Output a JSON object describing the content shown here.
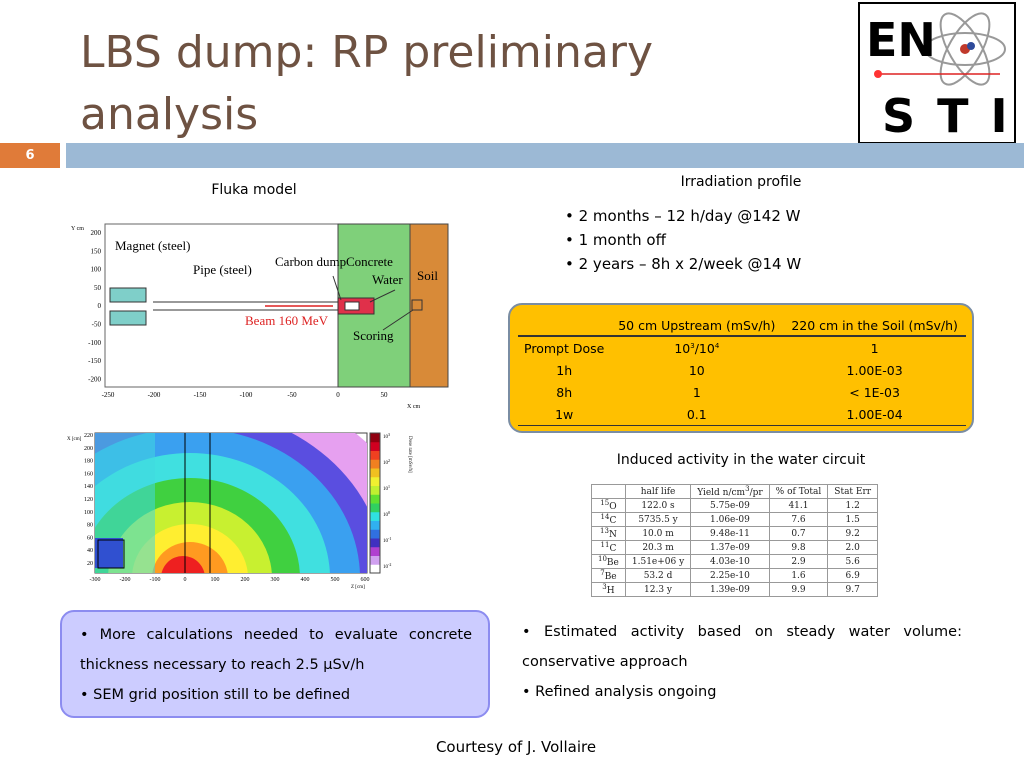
{
  "header": {
    "title": "LBS dump: RP preliminary analysis",
    "slide_number": "6",
    "logo": {
      "top": "EN",
      "bottom": "STI"
    }
  },
  "fluka_model": {
    "caption": "Fluka model",
    "labels": {
      "magnet": "Magnet (steel)",
      "pipe": "Pipe (steel)",
      "carbon_dump": "Carbon dump",
      "concrete": "Concrete",
      "water": "Water",
      "soil": "Soil",
      "beam": "Beam 160 MeV",
      "scoring": "Scoring",
      "y_axis": "Y cm",
      "x_axis": "X cm"
    },
    "y_ticks": [
      "200",
      "150",
      "100",
      "50",
      "0",
      "-50",
      "-100",
      "-150",
      "-200"
    ],
    "x_ticks": [
      "-250",
      "-200",
      "-150",
      "-100",
      "-50",
      "0",
      "50"
    ]
  },
  "dose_map": {
    "y_axis": "X [cm]",
    "x_axis": "Z [cm]",
    "colorbar_title": "Dose rate [mSv/h]",
    "y_ticks": [
      "220",
      "200",
      "180",
      "160",
      "140",
      "120",
      "100",
      "80",
      "60",
      "40",
      "20"
    ],
    "x_ticks": [
      "-300",
      "-200",
      "-100",
      "0",
      "100",
      "200",
      "300",
      "400",
      "500",
      "600"
    ],
    "colorbar_ticks": [
      {
        "base": "10",
        "exp": "3"
      },
      {
        "base": "10",
        "exp": "2"
      },
      {
        "base": "10",
        "exp": "1"
      },
      {
        "base": "10",
        "exp": "0"
      },
      {
        "base": "10",
        "exp": "-1"
      },
      {
        "base": "10",
        "exp": "-2"
      }
    ]
  },
  "irradiation": {
    "title": "Irradiation profile",
    "bullets": [
      "2 months – 12 h/day @142 W",
      "1 month off",
      "2 years – 8h x 2/week @14 W"
    ]
  },
  "dose_table": {
    "headers": [
      "50 cm Upstream (mSv/h)",
      "220 cm in the Soil (mSv/h)"
    ],
    "prompt_row": {
      "label": "Prompt Dose",
      "upstream": {
        "a_base": "10",
        "a_exp": "3",
        "sep": "/",
        "b_base": "10",
        "b_exp": "4"
      },
      "soil": "1"
    },
    "rows": [
      [
        "1h",
        "10",
        "1.00E-03"
      ],
      [
        "8h",
        "1",
        "< 1E-03"
      ],
      [
        "1w",
        "0.1",
        "1.00E-04"
      ]
    ]
  },
  "activity": {
    "title": "Induced activity in the water circuit",
    "headers": {
      "half_life": "half life",
      "yield_pre": "Yield n/cm",
      "yield_exp": "3",
      "yield_post": "/pr",
      "percent": "% of Total",
      "stat_err": "Stat Err"
    },
    "rows": [
      {
        "mass": "15",
        "symbol": "O",
        "cells": [
          "122.0 s",
          "5.75e-09",
          "41.1",
          "1.2"
        ]
      },
      {
        "mass": "14",
        "symbol": "C",
        "cells": [
          "5735.5 y",
          "1.06e-09",
          "7.6",
          "1.5"
        ]
      },
      {
        "mass": "13",
        "symbol": "N",
        "cells": [
          "10.0 m",
          "9.48e-11",
          "0.7",
          "9.2"
        ]
      },
      {
        "mass": "11",
        "symbol": "C",
        "cells": [
          "20.3 m",
          "1.37e-09",
          "9.8",
          "2.0"
        ]
      },
      {
        "mass": "10",
        "symbol": "Be",
        "cells": [
          "1.51e+06 y",
          "4.03e-10",
          "2.9",
          "5.6"
        ]
      },
      {
        "mass": "7",
        "symbol": "Be",
        "cells": [
          "53.2 d",
          "2.25e-10",
          "1.6",
          "6.9"
        ]
      },
      {
        "mass": "3",
        "symbol": "H",
        "cells": [
          "12.3 y",
          "1.39e-09",
          "9.9",
          "9.7"
        ]
      }
    ]
  },
  "notes_left": [
    "More calculations needed to evaluate concrete thickness necessary to reach 2.5 μSv/h",
    "SEM grid position still to be defined"
  ],
  "notes_right": [
    "Estimated activity based on steady water volume: conservative approach",
    "Refined analysis ongoing"
  ],
  "footer": "Courtesy of J. Vollaire"
}
